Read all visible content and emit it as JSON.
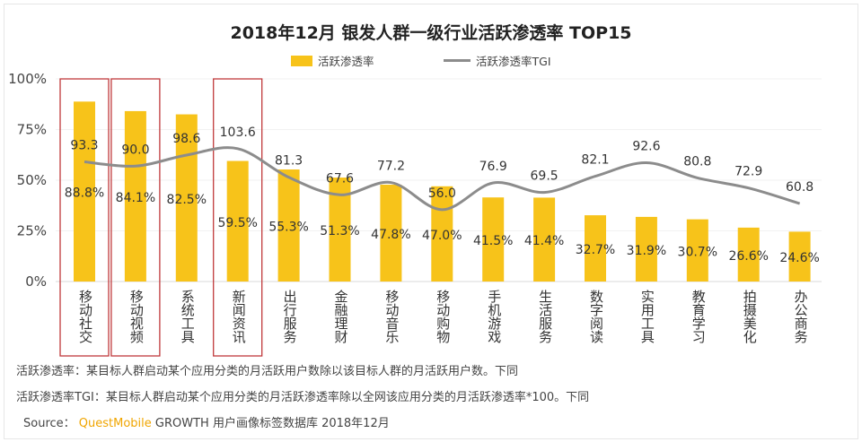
{
  "chart_data": {
    "type": "bar",
    "title": "2018年12月 银发人群一级行业活跃渗透率 TOP15",
    "categories": [
      "移动社交",
      "移动视频",
      "系统工具",
      "新闻资讯",
      "出行服务",
      "金融理财",
      "移动音乐",
      "移动购物",
      "手机游戏",
      "生活服务",
      "数字阅读",
      "实用工具",
      "教育学习",
      "拍摄美化",
      "办公商务"
    ],
    "series": [
      {
        "name": "活跃渗透率",
        "type": "bar",
        "color": "#f7c31a",
        "values": [
          88.8,
          84.1,
          82.5,
          59.5,
          55.3,
          51.3,
          47.8,
          47.0,
          41.5,
          41.4,
          32.7,
          31.9,
          30.7,
          26.6,
          24.6
        ],
        "labels": [
          "88.8%",
          "84.1%",
          "82.5%",
          "59.5%",
          "55.3%",
          "51.3%",
          "47.8%",
          "47.0%",
          "41.5%",
          "41.4%",
          "32.7%",
          "31.9%",
          "30.7%",
          "26.6%",
          "24.6%"
        ]
      },
      {
        "name": "活跃渗透率TGI",
        "type": "line",
        "smooth": true,
        "axis": "secondary-hidden",
        "color": "#8c8c8c",
        "values": [
          93.3,
          90.0,
          98.6,
          103.6,
          81.3,
          67.6,
          77.2,
          56.0,
          76.9,
          69.5,
          82.1,
          92.6,
          80.8,
          72.9,
          60.8
        ],
        "labels": [
          "93.3",
          "90.0",
          "98.6",
          "103.6",
          "81.3",
          "67.6",
          "77.2",
          "56.0",
          "76.9",
          "69.5",
          "82.1",
          "92.6",
          "80.8",
          "72.9",
          "60.8"
        ]
      }
    ],
    "ylim": [
      0,
      100
    ],
    "yticks": [
      "0%",
      "25%",
      "50%",
      "75%",
      "100%"
    ],
    "y2lim": [
      0,
      158
    ],
    "grid": true,
    "legend": "top-center",
    "highlighted_categories": [
      "移动社交",
      "移动视频",
      "新闻资讯"
    ],
    "highlight_color": "#c0393b"
  },
  "notes": {
    "note1": "活跃渗透率：某目标人群启动某个应用分类的月活跃用户数除以该目标人群的月活跃用户数。下同",
    "note2": "活跃渗透率TGI：某目标人群启动某个应用分类的月活跃渗透率除以全网该应用分类的月活跃渗透率*100。下同",
    "source_label": "Source：",
    "source_brand": "QuestMobile",
    "source_text": "GROWTH 用户画像标签数据库 2018年12月"
  }
}
